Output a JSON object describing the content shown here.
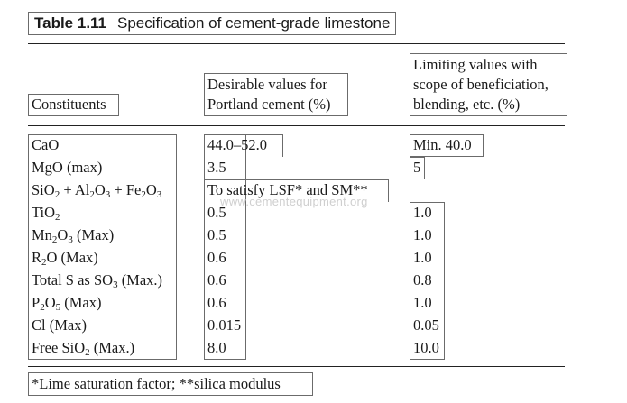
{
  "table": {
    "number": "Table 1.11",
    "title": "Specification of cement-grade limestone"
  },
  "headers": {
    "constituents": "Constituents",
    "desirable_line1": "Desirable values for",
    "desirable_line2": "Portland cement (%)",
    "limiting_line1": "Limiting values with",
    "limiting_line2": "scope of beneficiation,",
    "limiting_line3": "blending, etc. (%)"
  },
  "rows": [
    {
      "constituent": "CaO",
      "desirable": "44.0–52.0",
      "limiting": "Min. 40.0"
    },
    {
      "constituent": "MgO (max)",
      "desirable": "3.5",
      "limiting": "5"
    },
    {
      "constituent": "SiO2 + Al2O3 + Fe2O3",
      "desirable": "To satisfy LSF* and SM**",
      "limiting": ""
    },
    {
      "constituent": "TiO2",
      "desirable": "0.5",
      "limiting": "1.0"
    },
    {
      "constituent": "Mn2O3 (Max)",
      "desirable": "0.5",
      "limiting": "1.0"
    },
    {
      "constituent": "R2O (Max)",
      "desirable": "0.6",
      "limiting": "1.0"
    },
    {
      "constituent": "Total S as SO3 (Max.)",
      "desirable": "0.6",
      "limiting": "0.8"
    },
    {
      "constituent": "P2O5 (Max)",
      "desirable": "0.6",
      "limiting": "1.0"
    },
    {
      "constituent": "Cl (Max)",
      "desirable": "0.015",
      "limiting": "0.05"
    },
    {
      "constituent": "Free SiO2 (Max.)",
      "desirable": "8.0",
      "limiting": "10.0"
    }
  ],
  "footnote": "*Lime saturation factor; **silica modulus",
  "watermark": "www.cementequipment.org"
}
